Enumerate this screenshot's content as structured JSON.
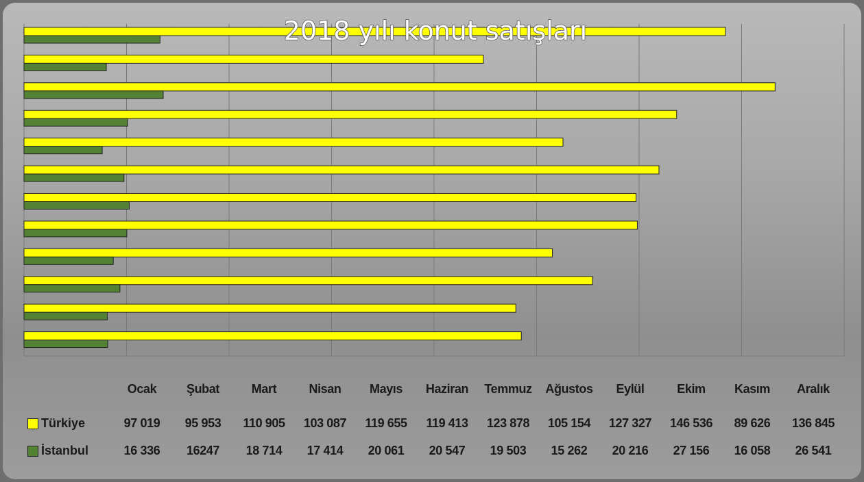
{
  "chart_data": {
    "type": "barh",
    "title": "2018 yılı konut satışları",
    "categories": [
      "Ocak",
      "Şubat",
      "Mart",
      "Nisan",
      "Mayıs",
      "Haziran",
      "Temmuz",
      "Ağustos",
      "Eylül",
      "Ekim",
      "Kasım",
      "Aralık"
    ],
    "series": [
      {
        "name": "Türkiye",
        "color": "#ffff00",
        "values": [
          97019,
          95953,
          110905,
          103087,
          119655,
          119413,
          123878,
          105154,
          127327,
          146536,
          89626,
          136845
        ],
        "value_labels": [
          "97 019",
          "95 953",
          "110 905",
          "103 087",
          "119 655",
          "119 413",
          "123 878",
          "105 154",
          "127 327",
          "146 536",
          "89 626",
          "136 845"
        ]
      },
      {
        "name": "İstanbul",
        "color": "#548235",
        "values": [
          16336,
          16247,
          18714,
          17414,
          20061,
          20547,
          19503,
          15262,
          20216,
          27156,
          16058,
          26541
        ],
        "value_labels": [
          "16 336",
          "16247",
          "18 714",
          "17 414",
          "20 061",
          "20 547",
          "19 503",
          "15 262",
          "20 216",
          "27 156",
          "16 058",
          "26 541"
        ]
      }
    ],
    "xlim": [
      0,
      160000
    ],
    "xticks": [
      0,
      20000,
      40000,
      60000,
      80000,
      100000,
      120000,
      140000,
      160000
    ],
    "grid": true
  }
}
